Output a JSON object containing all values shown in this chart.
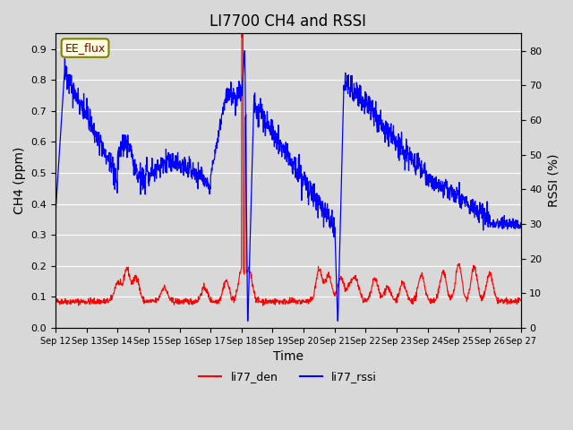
{
  "title": "LI7700 CH4 and RSSI",
  "xlabel": "Time",
  "ylabel_left": "CH4 (ppm)",
  "ylabel_right": "RSSI (%)",
  "annotation": "EE_flux",
  "xlim": [
    0,
    15
  ],
  "ylim_left": [
    0.0,
    0.95
  ],
  "ylim_right": [
    0,
    85
  ],
  "yticks_left": [
    0.0,
    0.1,
    0.2,
    0.3,
    0.4,
    0.5,
    0.6,
    0.7,
    0.8,
    0.9
  ],
  "yticks_right": [
    0,
    10,
    20,
    30,
    40,
    50,
    60,
    70,
    80
  ],
  "xtick_labels": [
    "Sep 12",
    "Sep 13",
    "Sep 14",
    "Sep 15",
    "Sep 16",
    "Sep 17",
    "Sep 18",
    "Sep 19",
    "Sep 20",
    "Sep 21",
    "Sep 22",
    "Sep 23",
    "Sep 24",
    "Sep 25",
    "Sep 26",
    "Sep 27"
  ],
  "legend_labels": [
    "li77_den",
    "li77_rssi"
  ],
  "line_colors": [
    "red",
    "blue"
  ],
  "bg_color": "#e8e8e8",
  "plot_bg_color": "#d8d8d8",
  "title_fontsize": 12,
  "label_fontsize": 10,
  "tick_fontsize": 8
}
